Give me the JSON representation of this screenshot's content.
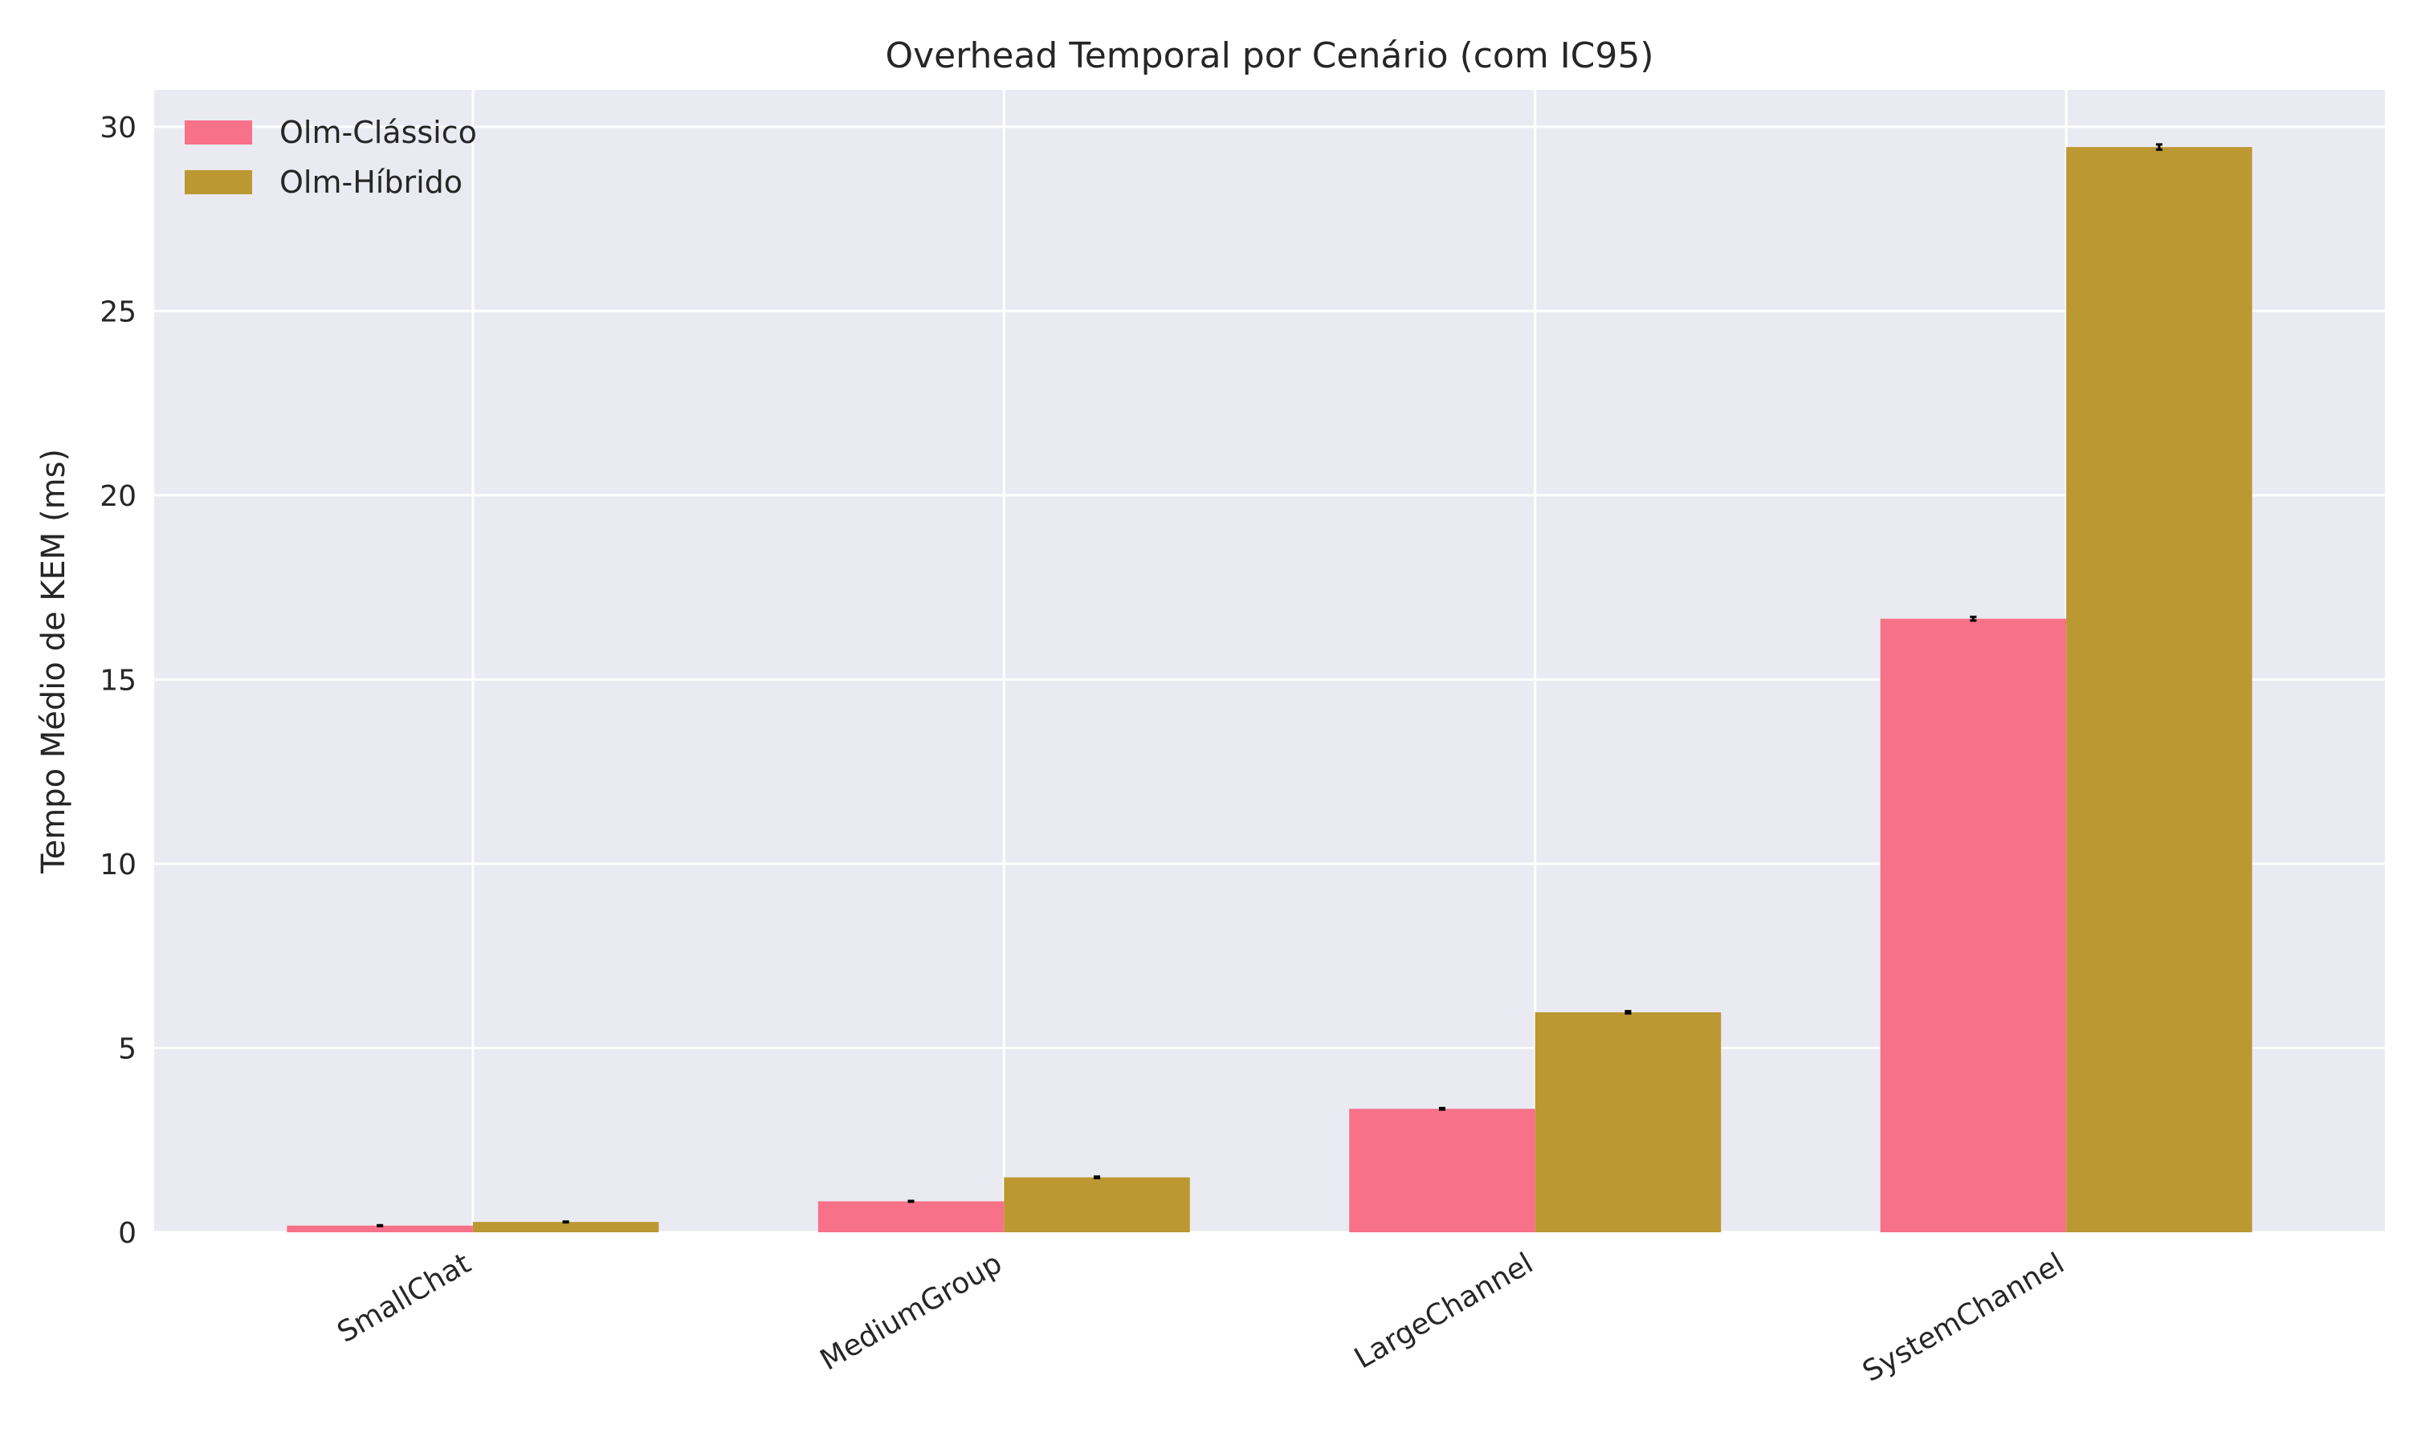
{
  "chart_data": {
    "type": "bar",
    "title": "Overhead Temporal por Cenário (com IC95)",
    "xlabel": "",
    "ylabel": "Tempo Médio de KEM (ms)",
    "categories": [
      "SmallChat",
      "MediumGroup",
      "LargeChannel",
      "SystemChannel"
    ],
    "series": [
      {
        "name": "Olm-Clássico",
        "color": "#f77189",
        "values": [
          0.18,
          0.84,
          3.35,
          16.65
        ],
        "ci95": [
          0.01,
          0.01,
          0.02,
          0.05
        ]
      },
      {
        "name": "Olm-Híbrido",
        "color": "#bb9832",
        "values": [
          0.28,
          1.49,
          5.97,
          29.45
        ],
        "ci95": [
          0.01,
          0.02,
          0.03,
          0.07
        ]
      }
    ],
    "ylim": [
      0,
      31
    ],
    "yticks": [
      0,
      5,
      10,
      15,
      20,
      25,
      30
    ],
    "grid": true,
    "legend_position": "top-left",
    "background": "#eaeaf2",
    "grid_color": "#ffffff"
  }
}
